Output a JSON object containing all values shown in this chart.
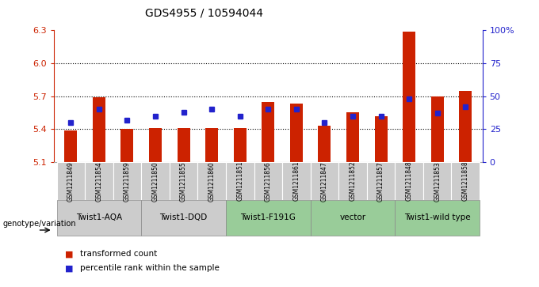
{
  "title": "GDS4955 / 10594044",
  "samples": [
    "GSM1211849",
    "GSM1211854",
    "GSM1211859",
    "GSM1211850",
    "GSM1211855",
    "GSM1211860",
    "GSM1211851",
    "GSM1211856",
    "GSM1211861",
    "GSM1211847",
    "GSM1211852",
    "GSM1211857",
    "GSM1211848",
    "GSM1211853",
    "GSM1211858"
  ],
  "bar_values": [
    5.39,
    5.69,
    5.4,
    5.41,
    5.41,
    5.41,
    5.41,
    5.65,
    5.63,
    5.43,
    5.55,
    5.52,
    6.29,
    5.7,
    5.75
  ],
  "percentile_values": [
    30,
    40,
    32,
    35,
    38,
    40,
    35,
    40,
    40,
    30,
    35,
    35,
    48,
    37,
    42
  ],
  "ymin": 5.1,
  "ymax": 6.3,
  "yticks": [
    5.1,
    5.4,
    5.7,
    6.0,
    6.3
  ],
  "right_yticks": [
    0,
    25,
    50,
    75,
    100
  ],
  "right_yticklabels": [
    "0",
    "25",
    "50",
    "75",
    "100%"
  ],
  "grid_lines": [
    5.4,
    5.7,
    6.0
  ],
  "bar_color": "#CC2200",
  "percentile_color": "#2222CC",
  "groups": [
    {
      "label": "Twist1-AQA",
      "indices": [
        0,
        1,
        2
      ],
      "color": "#cccccc"
    },
    {
      "label": "Twist1-DQD",
      "indices": [
        3,
        4,
        5
      ],
      "color": "#cccccc"
    },
    {
      "label": "Twist1-F191G",
      "indices": [
        6,
        7,
        8
      ],
      "color": "#99cc99"
    },
    {
      "label": "vector",
      "indices": [
        9,
        10,
        11
      ],
      "color": "#99cc99"
    },
    {
      "label": "Twist1-wild type",
      "indices": [
        12,
        13,
        14
      ],
      "color": "#99cc99"
    }
  ],
  "legend_label_bar": "transformed count",
  "legend_label_pct": "percentile rank within the sample",
  "genotype_label": "genotype/variation",
  "left_axis_color": "#CC2200",
  "right_axis_color": "#2222CC",
  "bg_color": "#ffffff",
  "sample_box_color": "#cccccc",
  "bar_width": 0.45
}
